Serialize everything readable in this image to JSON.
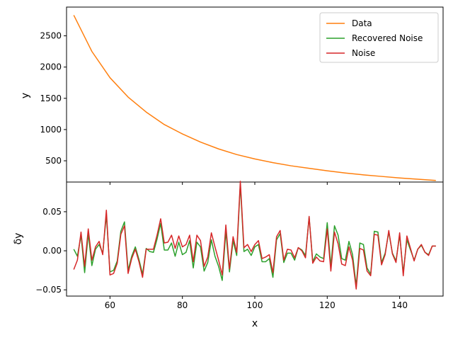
{
  "chart_data": [
    {
      "type": "line",
      "panel": "top",
      "title": "",
      "xlabel": "",
      "ylabel": "y",
      "xlim": [
        48,
        152
      ],
      "ylim": [
        160,
        2960
      ],
      "xticks": [
        60,
        80,
        100,
        120,
        140
      ],
      "yticks": [
        500,
        1000,
        1500,
        2000,
        2500
      ],
      "ytick_labels": [
        "500",
        "1000",
        "1500",
        "2000",
        "2500"
      ],
      "legend_position": "top-right",
      "series": [
        {
          "name": "Data",
          "color": "#ff7f0e",
          "x": [
            50,
            55,
            60,
            65,
            70,
            75,
            80,
            85,
            90,
            95,
            100,
            105,
            110,
            115,
            120,
            125,
            130,
            135,
            140,
            145,
            150
          ],
          "values": [
            2830,
            2250,
            1830,
            1520,
            1280,
            1080,
            930,
            800,
            690,
            600,
            530,
            470,
            420,
            380,
            340,
            305,
            275,
            250,
            225,
            205,
            185
          ]
        },
        {
          "name": "Recovered Noise",
          "color": "#2ca02c",
          "legend_only": true
        },
        {
          "name": "Noise",
          "color": "#d62728",
          "legend_only": true
        }
      ]
    },
    {
      "type": "line",
      "panel": "bottom",
      "title": "",
      "xlabel": "x",
      "ylabel": "δy",
      "xlim": [
        48,
        152
      ],
      "ylim": [
        -0.058,
        0.088
      ],
      "xticks": [
        60,
        80,
        100,
        120,
        140
      ],
      "xtick_labels": [
        "60",
        "80",
        "100",
        "120",
        "140"
      ],
      "yticks": [
        -0.05,
        0.0,
        0.05
      ],
      "ytick_labels": [
        "−0.05",
        "0.00",
        "0.05"
      ],
      "x": [
        50,
        51,
        52,
        53,
        54,
        55,
        56,
        57,
        58,
        59,
        60,
        61,
        62,
        63,
        64,
        65,
        66,
        67,
        68,
        69,
        70,
        71,
        72,
        73,
        74,
        75,
        76,
        77,
        78,
        79,
        80,
        81,
        82,
        83,
        84,
        85,
        86,
        87,
        88,
        89,
        90,
        91,
        92,
        93,
        94,
        95,
        96,
        97,
        98,
        99,
        100,
        101,
        102,
        103,
        104,
        105,
        106,
        107,
        108,
        109,
        110,
        111,
        112,
        113,
        114,
        115,
        116,
        117,
        118,
        119,
        120,
        121,
        122,
        123,
        124,
        125,
        126,
        127,
        128,
        129,
        130,
        131,
        132,
        133,
        134,
        135,
        136,
        137,
        138,
        139,
        140,
        141,
        142,
        143,
        144,
        145,
        146,
        147,
        148,
        149,
        150
      ],
      "series": [
        {
          "name": "Recovered Noise",
          "color": "#2ca02c",
          "values": [
            0.002,
            -0.007,
            0.02,
            -0.028,
            0.022,
            -0.019,
            0.002,
            0.008,
            -0.003,
            0.046,
            -0.027,
            -0.025,
            -0.013,
            0.025,
            0.037,
            -0.025,
            -0.007,
            0.005,
            -0.011,
            -0.03,
            0.003,
            -0.001,
            -0.002,
            0.015,
            0.035,
            0.001,
            0.001,
            0.01,
            -0.007,
            0.011,
            -0.005,
            -0.002,
            0.013,
            -0.022,
            0.011,
            0.005,
            -0.026,
            -0.015,
            0.014,
            -0.007,
            -0.02,
            -0.038,
            0.025,
            -0.027,
            0.013,
            -0.006,
            0.085,
            -0.001,
            0.002,
            -0.006,
            0.005,
            0.008,
            -0.014,
            -0.014,
            -0.01,
            -0.034,
            0.014,
            0.022,
            -0.015,
            -0.003,
            -0.003,
            -0.012,
            0.004,
            0.001,
            -0.006,
            0.043,
            -0.014,
            -0.004,
            -0.008,
            -0.01,
            0.036,
            -0.02,
            0.032,
            0.02,
            -0.01,
            -0.012,
            0.012,
            -0.005,
            -0.045,
            0.01,
            0.008,
            -0.022,
            -0.03,
            0.025,
            0.024,
            -0.015,
            -0.003,
            0.024,
            -0.003,
            -0.013,
            0.02,
            -0.028,
            0.014,
            0.001,
            -0.012,
            0.002,
            0.007,
            -0.002,
            -0.005,
            0.006,
            0.006
          ]
        },
        {
          "name": "Noise",
          "color": "#d62728",
          "values": [
            -0.024,
            -0.012,
            0.024,
            -0.02,
            0.028,
            -0.012,
            0.005,
            0.012,
            -0.005,
            0.052,
            -0.031,
            -0.029,
            -0.016,
            0.021,
            0.032,
            -0.029,
            -0.01,
            0.002,
            -0.014,
            -0.034,
            0.002,
            0.002,
            0.002,
            0.02,
            0.041,
            0.01,
            0.011,
            0.02,
            0.003,
            0.019,
            0.005,
            0.008,
            0.02,
            -0.014,
            0.02,
            0.013,
            -0.02,
            -0.008,
            0.023,
            0.005,
            -0.012,
            -0.031,
            0.033,
            -0.023,
            0.018,
            -0.002,
            0.089,
            0.004,
            0.008,
            -0.001,
            0.008,
            0.013,
            -0.01,
            -0.008,
            -0.005,
            -0.028,
            0.018,
            0.026,
            -0.012,
            0.002,
            0.001,
            -0.009,
            0.004,
            0.0,
            -0.009,
            0.044,
            -0.016,
            -0.008,
            -0.013,
            -0.014,
            0.028,
            -0.026,
            0.024,
            0.009,
            -0.017,
            -0.019,
            0.005,
            -0.012,
            -0.049,
            0.003,
            0.001,
            -0.026,
            -0.032,
            0.021,
            0.02,
            -0.018,
            -0.005,
            0.026,
            -0.004,
            -0.015,
            0.023,
            -0.032,
            0.019,
            0.003,
            -0.013,
            0.002,
            0.008,
            -0.002,
            -0.006,
            0.006,
            0.006
          ]
        }
      ]
    }
  ]
}
